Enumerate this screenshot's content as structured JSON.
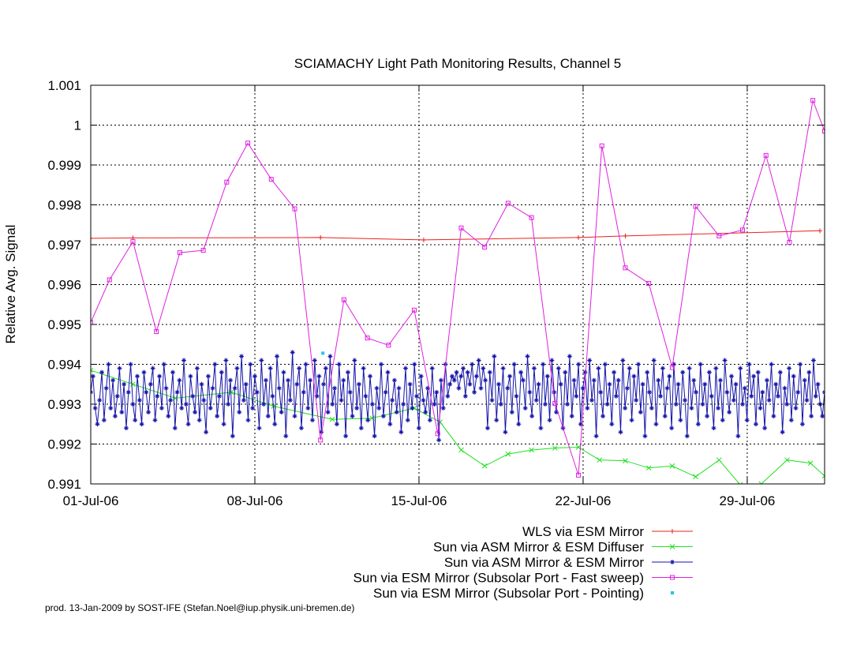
{
  "chart_data": {
    "type": "line",
    "title": "SCIAMACHY Light Path Monitoring Results, Channel 5",
    "ylabel": "Relative Avg. Signal",
    "xlabel": "",
    "xlim": [
      0,
      31.3
    ],
    "ylim": [
      0.991,
      1.001
    ],
    "grid": true,
    "legend_position": "bottom-right",
    "x_ticks": [
      {
        "x": 0,
        "label": "01-Jul-06"
      },
      {
        "x": 7,
        "label": "08-Jul-06"
      },
      {
        "x": 14,
        "label": "15-Jul-06"
      },
      {
        "x": 21,
        "label": "22-Jul-06"
      },
      {
        "x": 28,
        "label": "29-Jul-06"
      }
    ],
    "y_ticks": [
      {
        "y": 0.991,
        "label": "0.991"
      },
      {
        "y": 0.992,
        "label": "0.992"
      },
      {
        "y": 0.993,
        "label": "0.993"
      },
      {
        "y": 0.994,
        "label": "0.994"
      },
      {
        "y": 0.995,
        "label": "0.995"
      },
      {
        "y": 0.996,
        "label": "0.996"
      },
      {
        "y": 0.997,
        "label": "0.997"
      },
      {
        "y": 0.998,
        "label": "0.998"
      },
      {
        "y": 0.999,
        "label": "0.999"
      },
      {
        "y": 1.0,
        "label": "1"
      },
      {
        "y": 1.001,
        "label": "1.001"
      }
    ],
    "series": [
      {
        "name": "WLS via ESM Mirror",
        "color": "#e8231c",
        "marker": "plus",
        "x": [
          0,
          1.8,
          9.8,
          14.2,
          20.8,
          22.8,
          31.1
        ],
        "y": [
          0.99716,
          0.99717,
          0.99718,
          0.99712,
          0.99718,
          0.99722,
          0.99735
        ]
      },
      {
        "name": "Sun via ASM Mirror & ESM Diffuser",
        "color": "#22e022",
        "marker": "cross",
        "x": [
          0,
          1.8,
          3.6,
          6.0,
          7.8,
          10.3,
          12.0,
          13.8,
          14.9,
          15.8,
          16.8,
          17.8,
          18.8,
          19.8,
          20.8,
          21.7,
          22.8,
          23.8,
          24.8,
          25.8,
          26.8,
          27.7,
          28.6,
          29.7,
          30.7,
          31.3
        ],
        "y": [
          0.99385,
          0.9935,
          0.99315,
          0.9933,
          0.99295,
          0.99262,
          0.99265,
          0.9929,
          0.99255,
          0.99185,
          0.99145,
          0.99175,
          0.99185,
          0.9919,
          0.99192,
          0.9916,
          0.99158,
          0.9914,
          0.99145,
          0.99118,
          0.9916,
          0.99098,
          0.991,
          0.9916,
          0.99152,
          0.9912
        ]
      },
      {
        "name": "Sun via ASM Mirror & ESM Mirror",
        "color": "#1414a8",
        "marker": "star",
        "x_start": 0,
        "x_end": 31.3,
        "y": [
          0.9933,
          0.9937,
          0.9929,
          0.9925,
          0.9931,
          0.9938,
          0.9926,
          0.9934,
          0.994,
          0.9929,
          0.9936,
          0.9927,
          0.9932,
          0.9939,
          0.9928,
          0.9935,
          0.9924,
          0.9933,
          0.994,
          0.993,
          0.9926,
          0.9937,
          0.9931,
          0.9925,
          0.9938,
          0.9933,
          0.9928,
          0.9935,
          0.9939,
          0.9926,
          0.9932,
          0.9937,
          0.9929,
          0.994,
          0.9934,
          0.9927,
          0.9931,
          0.9938,
          0.9924,
          0.9933,
          0.9936,
          0.9929,
          0.9941,
          0.993,
          0.9925,
          0.9937,
          0.9932,
          0.9928,
          0.9939,
          0.9926,
          0.9935,
          0.9931,
          0.9923,
          0.9937,
          0.9929,
          0.9934,
          0.994,
          0.9927,
          0.9932,
          0.9938,
          0.9925,
          0.9941,
          0.993,
          0.9936,
          0.9922,
          0.9934,
          0.9939,
          0.9928,
          0.9942,
          0.9931,
          0.9935,
          0.9926,
          0.994,
          0.9929,
          0.9937,
          0.9933,
          0.9924,
          0.9941,
          0.993,
          0.9936,
          0.9927,
          0.9939,
          0.9932,
          0.9925,
          0.9942,
          0.9934,
          0.9928,
          0.9938,
          0.9922,
          0.9936,
          0.9931,
          0.9943,
          0.9927,
          0.9935,
          0.9939,
          0.9924,
          0.9933,
          0.994,
          0.9929,
          0.9936,
          0.9926,
          0.9941,
          0.9932,
          0.9937,
          0.9923,
          0.9935,
          0.9939,
          0.9928,
          0.9942,
          0.993,
          0.9934,
          0.9925,
          0.994,
          0.9931,
          0.9936,
          0.9922,
          0.9938,
          0.9933,
          0.9927,
          0.9941,
          0.9929,
          0.9935,
          0.9924,
          0.9939,
          0.9932,
          0.9926,
          0.9937,
          0.993,
          0.9922,
          0.9934,
          0.9929,
          0.994,
          0.9927,
          0.9933,
          0.9938,
          0.9925,
          0.9931,
          0.9936,
          0.9928,
          0.9934,
          0.9923,
          0.993,
          0.9939,
          0.9926,
          0.9935,
          0.9929,
          0.994,
          0.9932,
          0.9924,
          0.9937,
          0.9931,
          0.9928,
          0.9934,
          0.9926,
          0.9939,
          0.993,
          0.9933,
          0.9921,
          0.9936,
          0.9929,
          0.994,
          0.9932,
          0.9935,
          0.9937,
          0.9936,
          0.9938,
          0.9934,
          0.9937,
          0.9939,
          0.9932,
          0.9938,
          0.9935,
          0.994,
          0.9933,
          0.9937,
          0.9941,
          0.9934,
          0.9939,
          0.9936,
          0.9924,
          0.9938,
          0.9931,
          0.9942,
          0.9926,
          0.9935,
          0.993,
          0.9939,
          0.9923,
          0.9934,
          0.9937,
          0.9928,
          0.994,
          0.9932,
          0.9925,
          0.9938,
          0.9936,
          0.9929,
          0.9942,
          0.9933,
          0.9927,
          0.9939,
          0.9931,
          0.9935,
          0.9924,
          0.994,
          0.993,
          0.9937,
          0.9926,
          0.9941,
          0.9933,
          0.9928,
          0.9939,
          0.9935,
          0.9924,
          0.9938,
          0.993,
          0.9942,
          0.9927,
          0.9936,
          0.9932,
          0.994,
          0.9925,
          0.9934,
          0.9938,
          0.9929,
          0.9941,
          0.9931,
          0.9936,
          0.9922,
          0.9939,
          0.9933,
          0.9927,
          0.994,
          0.993,
          0.9935,
          0.9925,
          0.9938,
          0.9932,
          0.9936,
          0.9923,
          0.9941,
          0.9929,
          0.9934,
          0.9939,
          0.9926,
          0.9937,
          0.9931,
          0.994,
          0.9928,
          0.9935,
          0.9922,
          0.9938,
          0.9933,
          0.9929,
          0.9941,
          0.9925,
          0.9936,
          0.9932,
          0.9939,
          0.9927,
          0.9934,
          0.9937,
          0.9924,
          0.994,
          0.993,
          0.9935,
          0.9926,
          0.9938,
          0.9931,
          0.9922,
          0.9939,
          0.9929,
          0.9936,
          0.9933,
          0.9925,
          0.994,
          0.993,
          0.9935,
          0.9927,
          0.9938,
          0.9932,
          0.9924,
          0.9939,
          0.9929,
          0.9936,
          0.9926,
          0.9941,
          0.9933,
          0.9928,
          0.9937,
          0.9931,
          0.9935,
          0.9922,
          0.9939,
          0.993,
          0.9934,
          0.9926,
          0.994,
          0.9932,
          0.9937,
          0.9925,
          0.9938,
          0.9929,
          0.9933,
          0.9924,
          0.9936,
          0.9931,
          0.994,
          0.9927,
          0.9935,
          0.9932,
          0.9938,
          0.9923,
          0.9934,
          0.993,
          0.9939,
          0.9926,
          0.9937,
          0.9929,
          0.9933,
          0.994,
          0.9925,
          0.9936,
          0.9931,
          0.9938,
          0.9927,
          0.9941,
          0.9932,
          0.9935,
          0.993,
          0.9927,
          0.9933
        ]
      },
      {
        "name": "Sun via ESM Mirror (Subsolar Port - Fast sweep)",
        "color": "#e020e0",
        "marker": "square",
        "x": [
          0,
          0.8,
          1.8,
          2.8,
          3.8,
          4.8,
          5.8,
          6.7,
          7.7,
          8.7,
          9.8,
          10.8,
          11.8,
          12.7,
          13.8,
          14.8,
          15.8,
          16.8,
          17.8,
          18.8,
          19.8,
          20.8,
          21.8,
          22.8,
          23.8,
          24.8,
          25.8,
          26.8,
          27.8,
          28.8,
          29.8,
          30.8,
          31.3
        ],
        "y": [
          0.99505,
          0.99612,
          0.99708,
          0.99482,
          0.9968,
          0.99686,
          0.99857,
          0.99955,
          0.99864,
          0.9979,
          0.9921,
          0.99562,
          0.99466,
          0.99448,
          0.99536,
          0.99226,
          0.99742,
          0.99694,
          0.99804,
          0.99768,
          0.99302,
          0.99122,
          0.99948,
          0.99642,
          0.99603,
          0.99392,
          0.99796,
          0.99722,
          0.99737,
          0.99924,
          0.99706,
          1.00062,
          0.99985
        ]
      },
      {
        "name": "Sun via ESM Mirror (Subsolar Port - Pointing)",
        "color": "#20c8e0",
        "marker": "dot",
        "x": [
          9.9
        ],
        "y": [
          0.99428
        ]
      }
    ]
  },
  "footer": "prod. 13-Jan-2009 by SOST-IFE (Stefan.Noel@iup.physik.uni-bremen.de)"
}
